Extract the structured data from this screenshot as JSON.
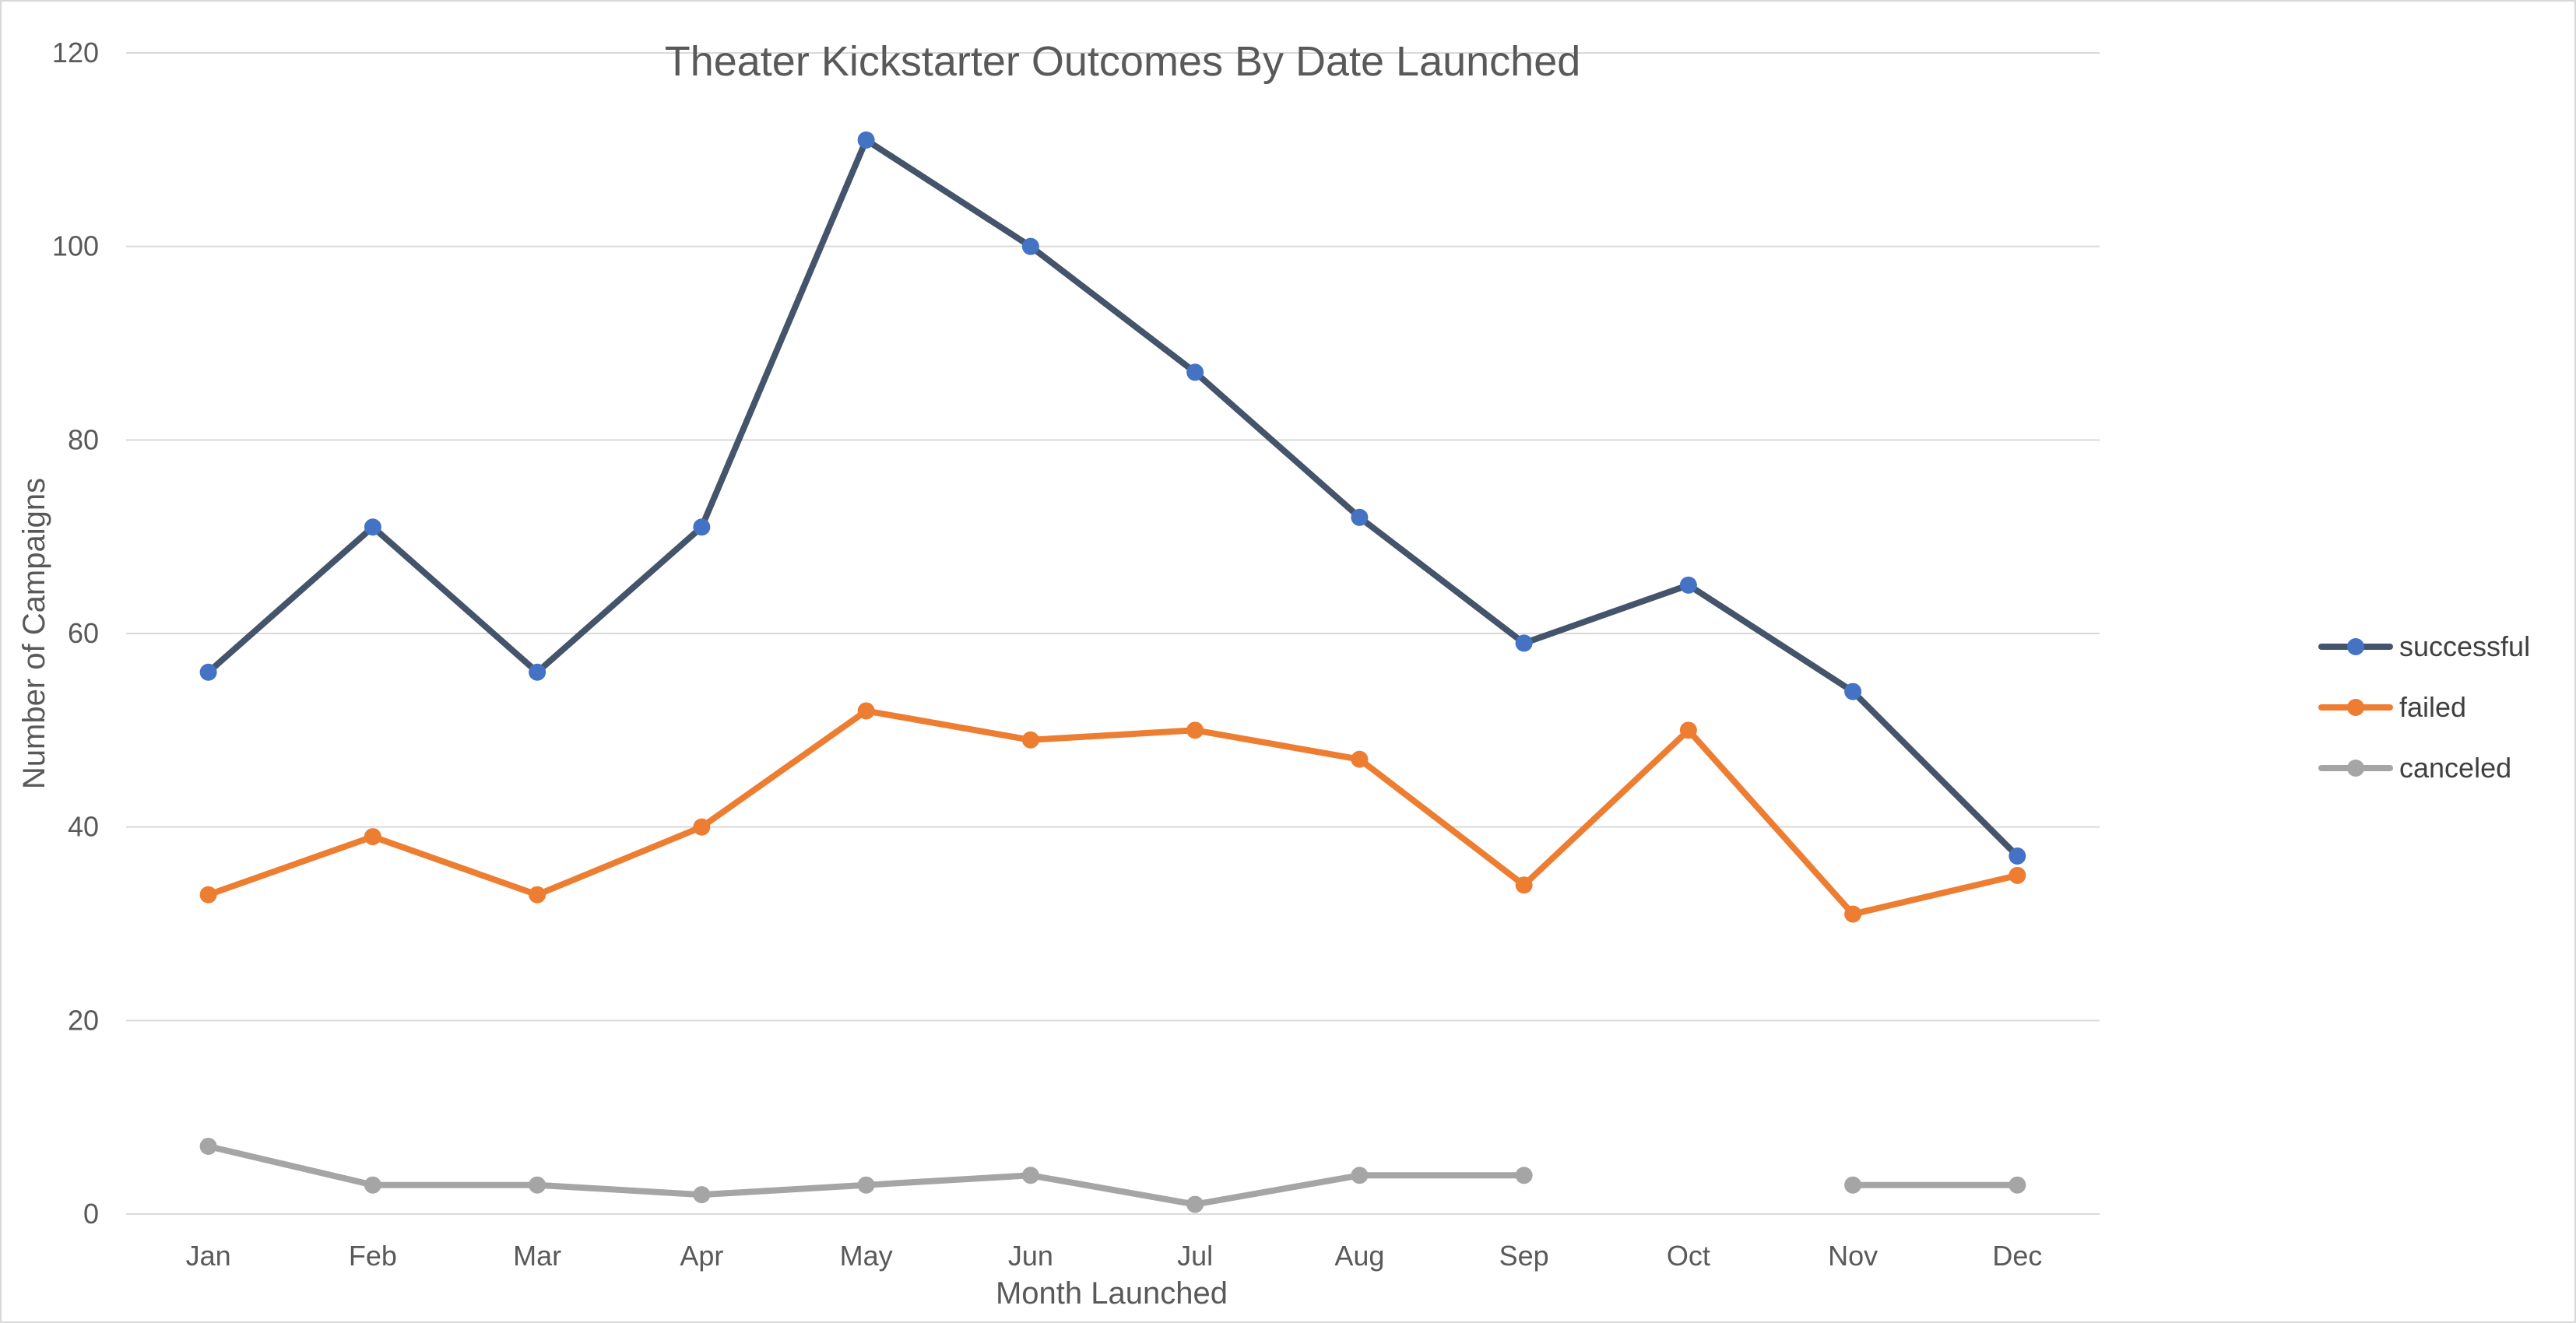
{
  "chart_data": {
    "type": "line",
    "title": "Theater Kickstarter Outcomes By Date Launched",
    "xlabel": "Month Launched",
    "ylabel": "Number of Campaigns",
    "ylim": [
      0,
      120
    ],
    "yticks": [
      0,
      20,
      40,
      60,
      80,
      100,
      120
    ],
    "grid": true,
    "legend_position": "right",
    "categories": [
      "Jan",
      "Feb",
      "Mar",
      "Apr",
      "May",
      "Jun",
      "Jul",
      "Aug",
      "Sep",
      "Oct",
      "Nov",
      "Dec"
    ],
    "series": [
      {
        "name": "successful",
        "line_color": "#44546a",
        "marker_color": "#4472c4",
        "values": [
          56,
          71,
          56,
          71,
          111,
          100,
          87,
          72,
          59,
          65,
          54,
          37
        ]
      },
      {
        "name": "failed",
        "line_color": "#ed7d31",
        "marker_color": "#ed7d31",
        "values": [
          33,
          39,
          33,
          40,
          52,
          49,
          50,
          47,
          34,
          50,
          31,
          35
        ]
      },
      {
        "name": "canceled",
        "line_color": "#a5a5a5",
        "marker_color": "#a5a5a5",
        "values": [
          7,
          3,
          3,
          2,
          3,
          4,
          1,
          4,
          4,
          null,
          3,
          3
        ]
      }
    ]
  }
}
